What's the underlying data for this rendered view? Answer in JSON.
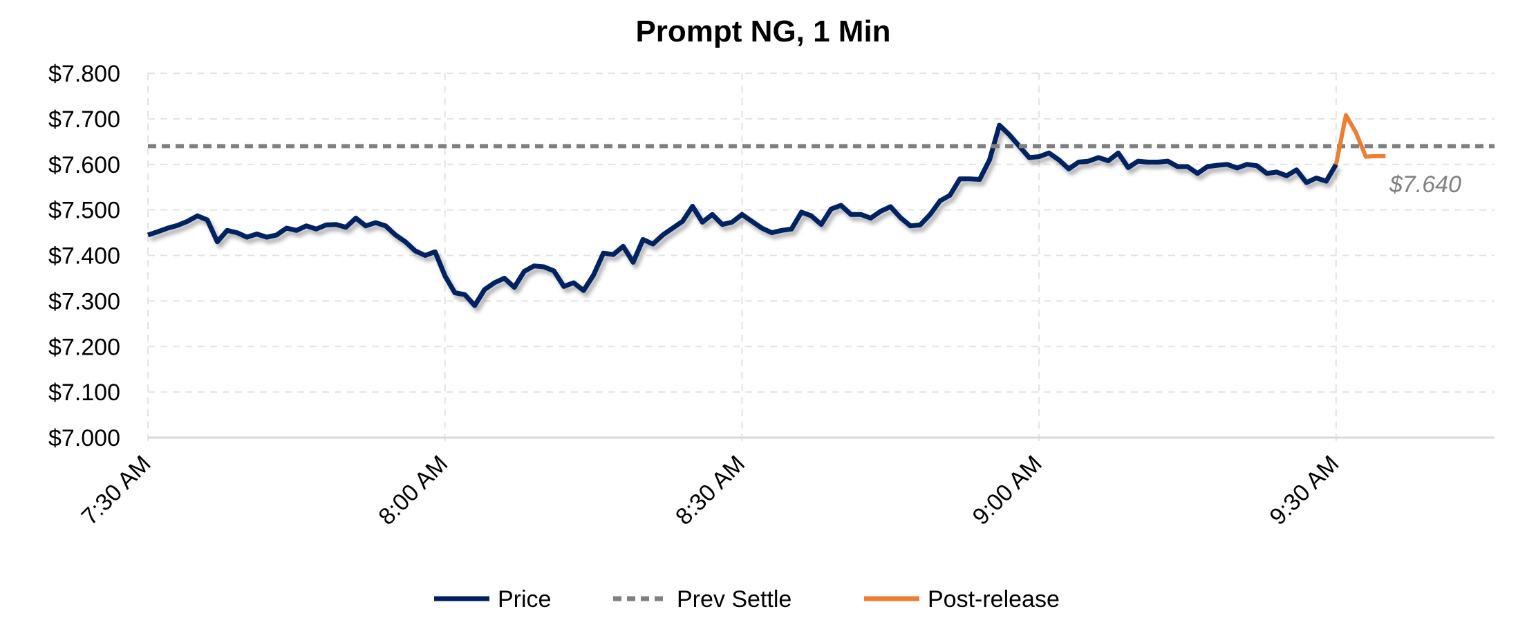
{
  "chart_data": {
    "type": "line",
    "title": "Prompt NG, 1 Min",
    "xlabel": "",
    "ylabel": "",
    "ylim": [
      7.0,
      7.8
    ],
    "yticks": [
      "$7.000",
      "$7.100",
      "$7.200",
      "$7.300",
      "$7.400",
      "$7.500",
      "$7.600",
      "$7.700",
      "$7.800"
    ],
    "ytick_values": [
      7.0,
      7.1,
      7.2,
      7.3,
      7.4,
      7.5,
      7.6,
      7.7,
      7.8
    ],
    "xlim": [
      "7:30",
      "9:46"
    ],
    "xticks": [
      "7:30 AM",
      "8:00 AM",
      "8:30 AM",
      "9:00 AM",
      "9:30 AM"
    ],
    "xtick_values": [
      "7:30",
      "8:00",
      "8:30",
      "9:00",
      "9:30"
    ],
    "grid": true,
    "legend_position": "bottom",
    "annotation": "$7.640",
    "series": [
      {
        "name": "Price",
        "color": "#002060",
        "style": "solid",
        "points": [
          [
            "7:30",
            7.445
          ],
          [
            "7:31",
            7.452
          ],
          [
            "7:32",
            7.46
          ],
          [
            "7:33",
            7.466
          ],
          [
            "7:34",
            7.475
          ],
          [
            "7:35",
            7.487
          ],
          [
            "7:36",
            7.478
          ],
          [
            "7:37",
            7.43
          ],
          [
            "7:38",
            7.455
          ],
          [
            "7:39",
            7.45
          ],
          [
            "7:40",
            7.44
          ],
          [
            "7:41",
            7.447
          ],
          [
            "7:42",
            7.44
          ],
          [
            "7:43",
            7.445
          ],
          [
            "7:44",
            7.46
          ],
          [
            "7:45",
            7.455
          ],
          [
            "7:46",
            7.465
          ],
          [
            "7:47",
            7.458
          ],
          [
            "7:48",
            7.467
          ],
          [
            "7:49",
            7.468
          ],
          [
            "7:50",
            7.462
          ],
          [
            "7:51",
            7.482
          ],
          [
            "7:52",
            7.465
          ],
          [
            "7:53",
            7.472
          ],
          [
            "7:54",
            7.465
          ],
          [
            "7:55",
            7.445
          ],
          [
            "7:56",
            7.43
          ],
          [
            "7:57",
            7.41
          ],
          [
            "7:58",
            7.4
          ],
          [
            "7:59",
            7.408
          ],
          [
            "8:00",
            7.355
          ],
          [
            "8:01",
            7.318
          ],
          [
            "8:02",
            7.314
          ],
          [
            "8:03",
            7.29
          ],
          [
            "8:04",
            7.325
          ],
          [
            "8:05",
            7.34
          ],
          [
            "8:06",
            7.35
          ],
          [
            "8:07",
            7.33
          ],
          [
            "8:08",
            7.365
          ],
          [
            "8:09",
            7.377
          ],
          [
            "8:10",
            7.375
          ],
          [
            "8:11",
            7.366
          ],
          [
            "8:12",
            7.332
          ],
          [
            "8:13",
            7.34
          ],
          [
            "8:14",
            7.323
          ],
          [
            "8:15",
            7.357
          ],
          [
            "8:16",
            7.405
          ],
          [
            "8:17",
            7.402
          ],
          [
            "8:18",
            7.42
          ],
          [
            "8:19",
            7.385
          ],
          [
            "8:20",
            7.435
          ],
          [
            "8:21",
            7.425
          ],
          [
            "8:22",
            7.445
          ],
          [
            "8:23",
            7.46
          ],
          [
            "8:24",
            7.475
          ],
          [
            "8:25",
            7.508
          ],
          [
            "8:26",
            7.473
          ],
          [
            "8:27",
            7.49
          ],
          [
            "8:28",
            7.468
          ],
          [
            "8:29",
            7.473
          ],
          [
            "8:30",
            7.49
          ],
          [
            "8:31",
            7.475
          ],
          [
            "8:32",
            7.46
          ],
          [
            "8:33",
            7.45
          ],
          [
            "8:34",
            7.455
          ],
          [
            "8:35",
            7.458
          ],
          [
            "8:36",
            7.495
          ],
          [
            "8:37",
            7.487
          ],
          [
            "8:38",
            7.468
          ],
          [
            "8:39",
            7.502
          ],
          [
            "8:40",
            7.51
          ],
          [
            "8:41",
            7.49
          ],
          [
            "8:42",
            7.49
          ],
          [
            "8:43",
            7.482
          ],
          [
            "8:44",
            7.497
          ],
          [
            "8:45",
            7.507
          ],
          [
            "8:46",
            7.483
          ],
          [
            "8:47",
            7.465
          ],
          [
            "8:48",
            7.467
          ],
          [
            "8:49",
            7.49
          ],
          [
            "8:50",
            7.52
          ],
          [
            "8:51",
            7.532
          ],
          [
            "8:52",
            7.568
          ],
          [
            "8:53",
            7.568
          ],
          [
            "8:54",
            7.567
          ],
          [
            "8:55",
            7.61
          ],
          [
            "8:56",
            7.686
          ],
          [
            "8:57",
            7.665
          ],
          [
            "8:58",
            7.64
          ],
          [
            "8:59",
            7.615
          ],
          [
            "9:00",
            7.617
          ],
          [
            "9:01",
            7.625
          ],
          [
            "9:02",
            7.61
          ],
          [
            "9:03",
            7.59
          ],
          [
            "9:04",
            7.605
          ],
          [
            "9:05",
            7.607
          ],
          [
            "9:06",
            7.615
          ],
          [
            "9:07",
            7.608
          ],
          [
            "9:08",
            7.625
          ],
          [
            "9:09",
            7.593
          ],
          [
            "9:10",
            7.607
          ],
          [
            "9:11",
            7.605
          ],
          [
            "9:12",
            7.605
          ],
          [
            "9:13",
            7.607
          ],
          [
            "9:14",
            7.595
          ],
          [
            "9:15",
            7.595
          ],
          [
            "9:16",
            7.58
          ],
          [
            "9:17",
            7.595
          ],
          [
            "9:18",
            7.598
          ],
          [
            "9:19",
            7.6
          ],
          [
            "9:20",
            7.592
          ],
          [
            "9:21",
            7.6
          ],
          [
            "9:22",
            7.597
          ],
          [
            "9:23",
            7.58
          ],
          [
            "9:24",
            7.583
          ],
          [
            "9:25",
            7.575
          ],
          [
            "9:26",
            7.588
          ],
          [
            "9:27",
            7.56
          ],
          [
            "9:28",
            7.57
          ],
          [
            "9:29",
            7.563
          ],
          [
            "9:30",
            7.6
          ]
        ]
      },
      {
        "name": "Prev Settle",
        "color": "#808080",
        "style": "dashed",
        "value": 7.64
      },
      {
        "name": "Post-release",
        "color": "#ED7D31",
        "style": "solid",
        "points": [
          [
            "9:30",
            7.6
          ],
          [
            "9:31",
            7.708
          ],
          [
            "9:32",
            7.67
          ],
          [
            "9:33",
            7.617
          ],
          [
            "9:34",
            7.618
          ],
          [
            "9:35",
            7.618
          ]
        ]
      }
    ]
  }
}
